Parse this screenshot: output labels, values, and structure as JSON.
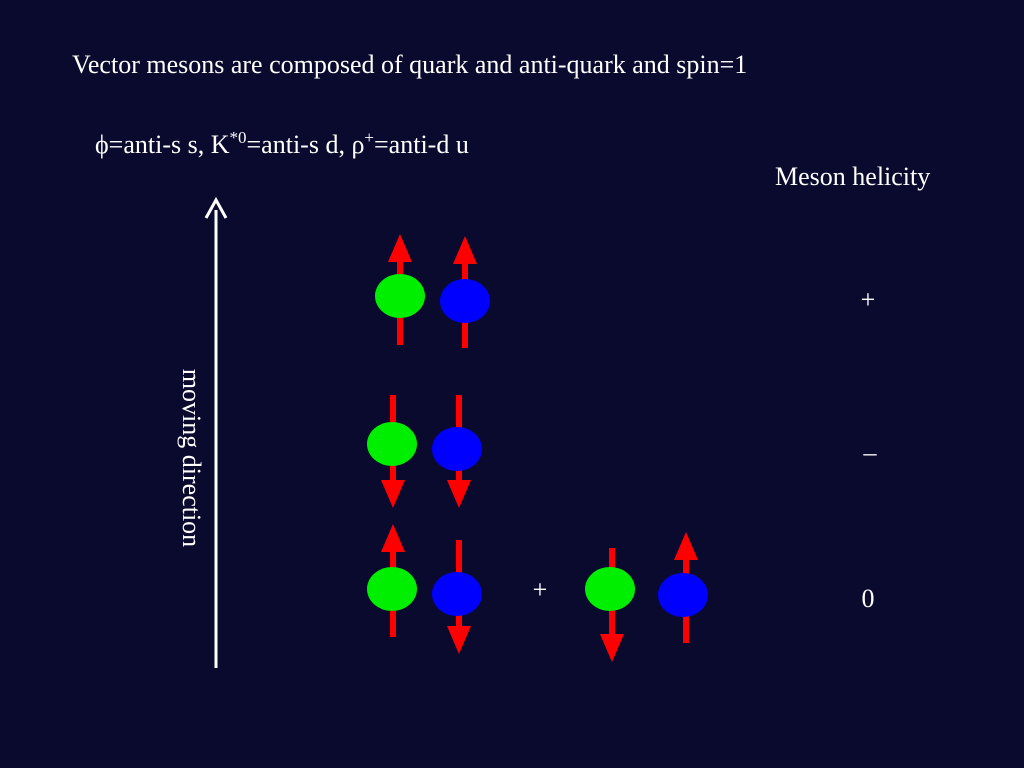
{
  "header": {
    "title": "Vector mesons are composed of  quark and anti-quark and spin=1"
  },
  "composition": {
    "phi": "ϕ=anti-s s,  K",
    "k_sup": "*0",
    "k": "=anti-s d,  ρ",
    "rho_sup": "+",
    "rho": "=anti-d u"
  },
  "axis": {
    "label": "moving direction"
  },
  "helicity": {
    "title": "Meson helicity",
    "labels": [
      "+",
      "–",
      "0"
    ]
  },
  "combination": {
    "operator": "+"
  }
}
